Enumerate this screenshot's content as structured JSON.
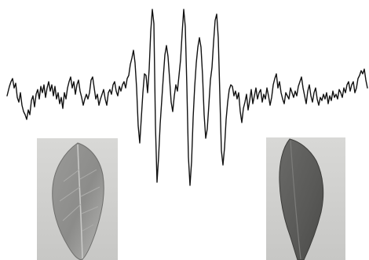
{
  "figure": {
    "subject": "waveform",
    "left_image": "leaf-photo",
    "right_image": "leaf-photo",
    "colors": {
      "background": "#ffffff",
      "waveform": "#111111",
      "photo_background": "#d3d3d1",
      "left_leaf": "#8f8f8d",
      "right_leaf": "#5e5e5c"
    }
  }
}
